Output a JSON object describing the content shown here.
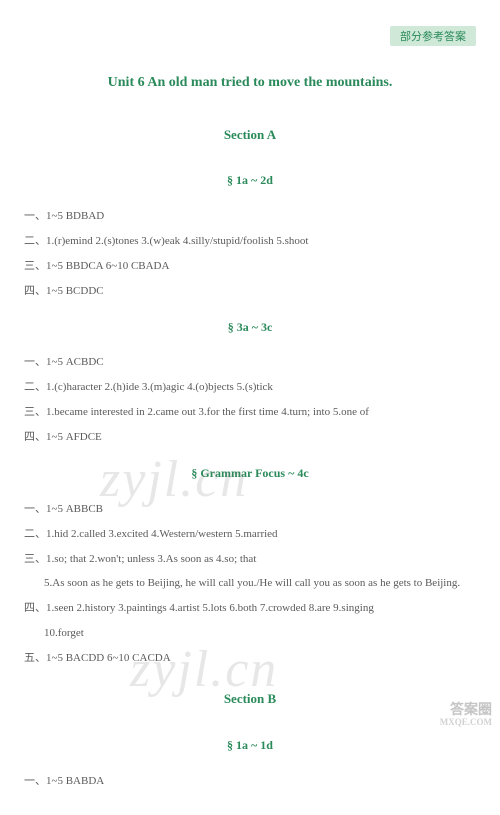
{
  "tag": "部分参考答案",
  "unitTitle": "Unit 6   An old man tried to move the mountains.",
  "sectionA": "Section A",
  "sectionB": "Section B",
  "sub1a2d": "§ 1a ~ 2d",
  "sub3a3c": "§ 3a ~ 3c",
  "subGrammar": "§ Grammar Focus ~ 4c",
  "sub1a1d": "§ 1a ~ 1d",
  "block1": {
    "l1": "一、1~5 BDBAD",
    "l2": "二、1.(r)emind   2.(s)tones   3.(w)eak   4.silly/stupid/foolish   5.shoot",
    "l3": "三、1~5 BBDCA   6~10 CBADA",
    "l4": "四、1~5 BCDDC"
  },
  "block2": {
    "l1": "一、1~5 ACBDC",
    "l2": "二、1.(c)haracter   2.(h)ide   3.(m)agic   4.(o)bjects   5.(s)tick",
    "l3": "三、1.became interested in   2.came out   3.for the first time   4.turn; into   5.one of",
    "l4": "四、1~5 AFDCE"
  },
  "block3": {
    "l1": "一、1~5 ABBCB",
    "l2": "二、1.hid   2.called   3.excited   4.Western/western   5.married",
    "l3": "三、1.so; that   2.won't; unless   3.As soon as   4.so; that",
    "l3b": "5.As soon as he gets to Beijing, he will call you./He will call you as soon as he gets to Beijing.",
    "l4": "四、1.seen   2.history   3.paintings   4.artist   5.lots   6.both   7.crowded   8.are   9.singing",
    "l4b": "10.forget",
    "l5": "五、1~5 BACDD   6~10 CACDA"
  },
  "block4": {
    "l1": "一、1~5 BABDA"
  },
  "watermark": "zyjl.cn",
  "corner1": "答案圈",
  "corner2": "MXQE.COM"
}
